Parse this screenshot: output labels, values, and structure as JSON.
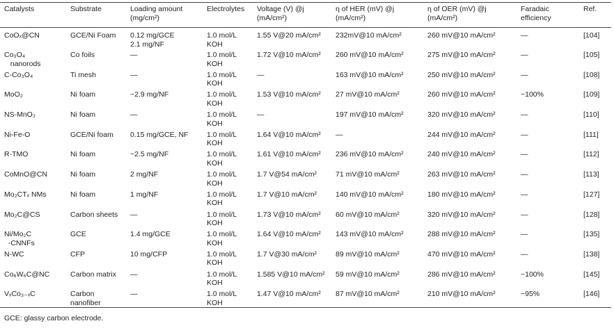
{
  "table": {
    "header": [
      "Catalysts",
      "Substrate",
      "Loading amount\n(mg/cm²)",
      "Electrolytes",
      "Voltage (V) @j\n(mA/cm²)",
      "η of HER (mV) @j\n(mA/cm²)",
      "η of OER (mV) @j\n(mA/cm²)",
      "Faradaic\nefficiency",
      "Ref."
    ],
    "rows": [
      [
        "CoOₓ@CN",
        "GCE/Ni Foam",
        "0.12 mg/GCE\n2.1 mg/NF",
        "1.0 mol/L\nKOH",
        "1.55 V@20 mA/cm²",
        "232mV@10 mA/cm²",
        "260 mV@10 mA/cm²",
        "—",
        "[104]"
      ],
      [
        "Co₃O₄\n   nanorods",
        "Co foils",
        "—",
        "1.0 mol/L\nKOH",
        "1.72 V@10 mA/cm²",
        "260 mV@10 mA/cm²",
        "275 mV@10 mA/cm²",
        "—",
        "[105]"
      ],
      [
        "C-Co₃O₄",
        "Ti mesh",
        "—",
        "1.0 mol/L\nKOH",
        "—",
        "163 mV@10 mA/cm²",
        "250 mV@10 mA/cm²",
        "—",
        "[108]"
      ],
      [
        "MoO₂",
        "Ni foam",
        "~2.9 mg/NF",
        "1.0 mol/L\nKOH",
        "1.53 V@10 mA/cm²",
        "27 mV@10 mA/cm²",
        "260 mV@10 mA/cm²",
        "~100%",
        "[109]"
      ],
      [
        "NS-MnO₂",
        "Ni foam",
        "—",
        "1.0 mol/L\nKOH",
        "—",
        "197 mV@10 mA/cm²",
        "320 mV@10 mA/cm²",
        "—",
        "[110]"
      ],
      [
        "Ni-Fe-O",
        "GCE/Ni foam",
        "0.15 mg/GCE, NF",
        "1.0 mol/L\nKOH",
        "1.64 V@10 mA/cm²",
        "—",
        "244 mV@10 mA/cm²",
        "—",
        "[111]"
      ],
      [
        "R-TMO",
        "Ni foam",
        "~2.5 mg/NF",
        "1.0 mol/L\nKOH",
        "1.61 V@10 mA/cm²",
        "236 mV@10 mA/cm²",
        "240 mV@10 mA/cm²",
        "—",
        "[112]"
      ],
      [
        "CoMnO@CN",
        "Ni foam",
        "2 mg/NF",
        "1.0 mol/L\nKOH",
        "1.7 V@54 mA/cm²",
        "71 mV@10 mA/cm²",
        "263 mV@10 mA/cm²",
        "—",
        "[113]"
      ],
      [
        "Mo₂CTₓ NMs",
        "Ni foam",
        "1 mg/NF",
        "1.0 mol/L\nKOH",
        "1.7 V@10 mA/cm²",
        "140 mV@10 mA/cm²",
        "180 mV@10 mA/cm²",
        "—",
        "[127]"
      ],
      [
        "Mo₂C@CS",
        "Carbon sheets",
        "—",
        "1.0 mol/L\nKOH",
        "1.73 V@10 mA/cm²",
        "60 mV@10 mA/cm²",
        "320 mV@10 mA/cm²",
        "—",
        "[128]"
      ],
      [
        "Ni/Mo₂C\n  -CNNFs",
        "GCE",
        "1.4 mg/GCE",
        "1.0 mol/L\nKOH",
        "1.64 V@10 mA/cm²",
        "143 mV@10 mA/cm²",
        "288 mV@10 mA/cm²",
        "—",
        "[135]"
      ],
      [
        "N-WC",
        "CFP",
        "10 mg/CFP",
        "1.0 mol/L\nKOH",
        "1.7 V@30 mA/cm²",
        "89 mV@10 mA/cm²",
        "470 mV@10 mA/cm²",
        "—",
        "[138]"
      ],
      [
        "Co₆W₆C@NC",
        "Carbon matrix",
        "—",
        "1.0 mol/L\nKOH",
        "1.585 V@10 mA/cm²",
        "59 mV@10 mA/cm²",
        "286 mV@10 mA/cm²",
        "~100%",
        "[145]"
      ],
      [
        "VₓCo₃₋ₓC",
        "Carbon\nnanofiber",
        "—",
        "1.0 mol/L\nKOH",
        "1.47 V@10 mA/cm²",
        "87 mV@10 mA/cm²",
        "210 mV@10 mA/cm²",
        "~95%",
        "[146]"
      ]
    ],
    "footnote": "GCE: glassy carbon electrode."
  }
}
